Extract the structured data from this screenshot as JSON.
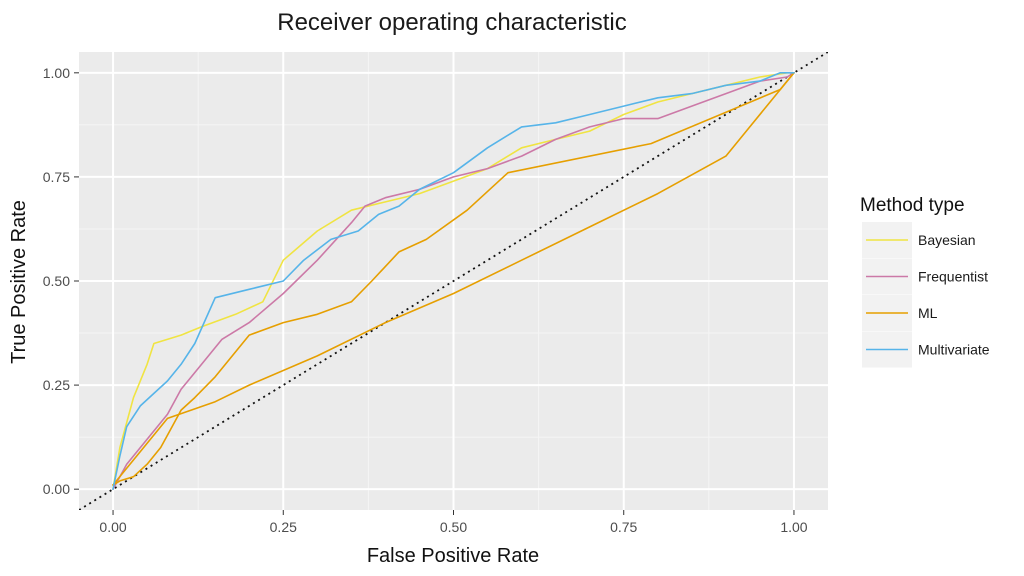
{
  "chart_data": {
    "type": "line",
    "title": "Receiver operating characteristic",
    "xlabel": "False Positive Rate",
    "ylabel": "True Positive Rate",
    "xlim": [
      -0.05,
      1.05
    ],
    "ylim": [
      -0.05,
      1.05
    ],
    "xticks": [
      0,
      0.25,
      0.5,
      0.75,
      1
    ],
    "yticks": [
      0,
      0.25,
      0.5,
      0.75,
      1
    ],
    "xtick_labels": [
      "0.00",
      "0.25",
      "0.50",
      "0.75",
      "1.00"
    ],
    "ytick_labels": [
      "0.00",
      "0.25",
      "0.50",
      "0.75",
      "1.00"
    ],
    "grid": true,
    "legend": {
      "title": "Method type",
      "position": "right"
    },
    "reference_line": {
      "style": "dotted",
      "from": [
        -0.05,
        -0.05
      ],
      "to": [
        1.05,
        1.05
      ]
    },
    "series": [
      {
        "name": "Bayesian",
        "color": "#F0E442",
        "x": [
          0,
          0.01,
          0.03,
          0.05,
          0.06,
          0.1,
          0.13,
          0.18,
          0.22,
          0.25,
          0.3,
          0.35,
          0.4,
          0.45,
          0.5,
          0.55,
          0.6,
          0.65,
          0.7,
          0.75,
          0.8,
          0.85,
          0.9,
          0.95,
          0.99,
          1
        ],
        "y": [
          0,
          0.1,
          0.22,
          0.3,
          0.35,
          0.37,
          0.39,
          0.42,
          0.45,
          0.55,
          0.62,
          0.67,
          0.69,
          0.71,
          0.74,
          0.77,
          0.82,
          0.84,
          0.86,
          0.9,
          0.93,
          0.95,
          0.97,
          0.99,
          1,
          1
        ]
      },
      {
        "name": "Frequentist",
        "color": "#CC79A7",
        "x": [
          0,
          0.02,
          0.05,
          0.08,
          0.1,
          0.13,
          0.16,
          0.2,
          0.25,
          0.3,
          0.35,
          0.37,
          0.4,
          0.45,
          0.5,
          0.55,
          0.6,
          0.65,
          0.7,
          0.75,
          0.8,
          0.85,
          0.9,
          0.95,
          0.99,
          1
        ],
        "y": [
          0,
          0.06,
          0.12,
          0.18,
          0.24,
          0.3,
          0.36,
          0.4,
          0.47,
          0.55,
          0.64,
          0.68,
          0.7,
          0.72,
          0.75,
          0.77,
          0.8,
          0.84,
          0.87,
          0.89,
          0.89,
          0.92,
          0.95,
          0.98,
          0.99,
          1
        ]
      },
      {
        "name": "ML",
        "color": "#E69F00",
        "x": [
          0,
          0.01,
          0.03,
          0.05,
          0.07,
          0.08,
          0.1,
          0.12,
          0.15,
          0.2,
          0.25,
          0.3,
          0.35,
          0.38,
          0.42,
          0.46,
          0.52,
          0.58,
          0.79,
          0.98,
          0.99,
          1
        ],
        "y": [
          0.01,
          0.02,
          0.03,
          0.06,
          0.1,
          0.13,
          0.19,
          0.22,
          0.27,
          0.37,
          0.4,
          0.42,
          0.45,
          0.5,
          0.57,
          0.6,
          0.67,
          0.76,
          0.83,
          0.96,
          0.98,
          1
        ]
      },
      {
        "name": "ML",
        "color": "#E69F00",
        "x": [
          0,
          0.08,
          0.15,
          0.2,
          0.3,
          0.4,
          0.5,
          0.6,
          0.7,
          0.8,
          0.9,
          0.98,
          1
        ],
        "y": [
          0.01,
          0.17,
          0.21,
          0.25,
          0.32,
          0.4,
          0.47,
          0.55,
          0.63,
          0.71,
          0.8,
          0.96,
          1
        ]
      },
      {
        "name": "Multivariate",
        "color": "#56B4E9",
        "x": [
          0,
          0.01,
          0.02,
          0.04,
          0.06,
          0.08,
          0.1,
          0.12,
          0.15,
          0.2,
          0.25,
          0.28,
          0.32,
          0.36,
          0.39,
          0.42,
          0.45,
          0.5,
          0.55,
          0.6,
          0.65,
          0.7,
          0.75,
          0.8,
          0.85,
          0.9,
          0.95,
          0.98,
          1
        ],
        "y": [
          0,
          0.08,
          0.15,
          0.2,
          0.23,
          0.26,
          0.3,
          0.35,
          0.46,
          0.48,
          0.5,
          0.55,
          0.6,
          0.62,
          0.66,
          0.68,
          0.72,
          0.76,
          0.82,
          0.87,
          0.88,
          0.9,
          0.92,
          0.94,
          0.95,
          0.97,
          0.98,
          1,
          1
        ]
      }
    ]
  }
}
